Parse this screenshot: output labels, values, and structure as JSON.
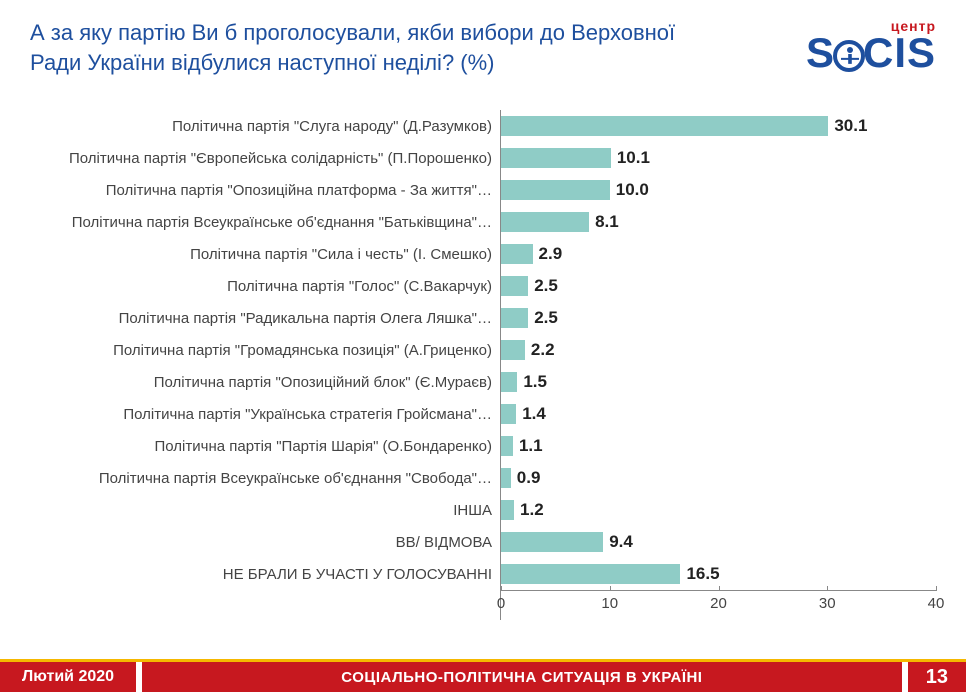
{
  "logo": {
    "small": "центр",
    "big_left": "S",
    "big_right": "CIS"
  },
  "title": "А за яку партію Ви б проголосували, якби вибори до Верховної Ради України відбулися наступної неділі? (%)",
  "chart": {
    "type": "bar",
    "orientation": "horizontal",
    "bar_color": "#8fccc6",
    "value_color": "#222222",
    "label_color": "#444444",
    "axis_color": "#888888",
    "background_color": "#ffffff",
    "label_fontsize": 15,
    "value_fontsize": 17,
    "value_fontweight": "bold",
    "xmin": 0,
    "xmax": 40,
    "xtick_step": 10,
    "xticks": [
      0,
      10,
      20,
      30,
      40
    ],
    "rows": [
      {
        "label": "Політична партія \"Слуга народу\" (Д.Разумков)",
        "value": 30.1
      },
      {
        "label": "Політична партія \"Європейська солідарність\" (П.Порошенко)",
        "value": 10.1
      },
      {
        "label": "Політична партія \"Опозиційна платформа - За життя\"…",
        "value": 10.0
      },
      {
        "label": "Політична партія Всеукраїнське об'єднання \"Батьківщина\"…",
        "value": 8.1
      },
      {
        "label": "Політична партія \"Сила і честь\" (І. Смешко)",
        "value": 2.9
      },
      {
        "label": "Політична партія \"Голос\" (С.Вакарчук)",
        "value": 2.5
      },
      {
        "label": "Політична партія \"Радикальна партія Олега Ляшка\"…",
        "value": 2.5
      },
      {
        "label": "Політична партія \"Громадянська позиція\" (А.Гриценко)",
        "value": 2.2
      },
      {
        "label": "Політична партія \"Опозиційний блок\" (Є.Мураєв)",
        "value": 1.5
      },
      {
        "label": "Політична партія \"Українська стратегія Гройсмана\"…",
        "value": 1.4
      },
      {
        "label": "Політична партія \"Партія Шарія\" (О.Бондаренко)",
        "value": 1.1
      },
      {
        "label": "Політична партія Всеукраїнське об'єднання \"Свобода\"…",
        "value": 0.9
      },
      {
        "label": "ІНША",
        "value": 1.2
      },
      {
        "label": "ВВ/ ВІДМОВА",
        "value": 9.4
      },
      {
        "label": "НЕ БРАЛИ Б УЧАСТІ У ГОЛОСУВАННІ",
        "value": 16.5
      }
    ]
  },
  "footer": {
    "date": "Лютий 2020",
    "title": "СОЦІАЛЬНО-ПОЛІТИЧНА СИТУАЦІЯ В УКРАЇНІ",
    "page": "13",
    "bg_color": "#c7181f",
    "accent_line_color": "#f5b800"
  }
}
